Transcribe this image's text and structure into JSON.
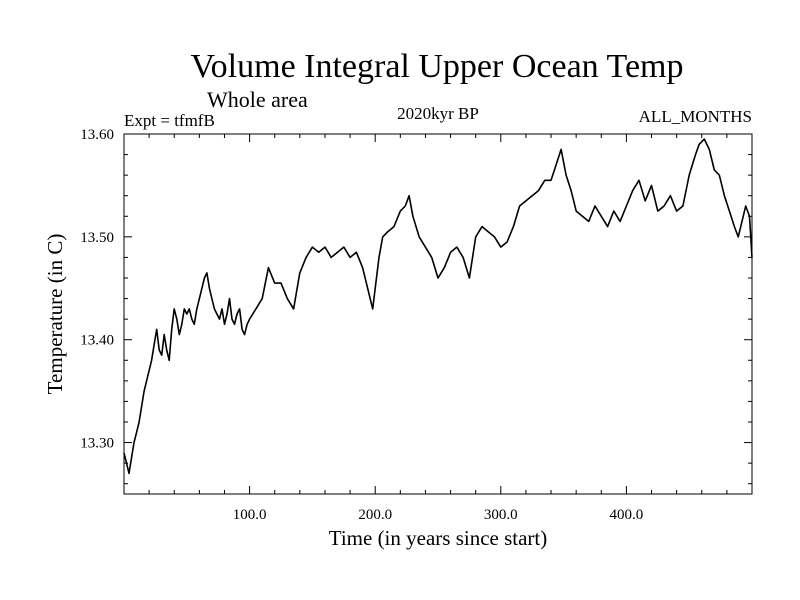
{
  "chart_data": {
    "type": "line",
    "title": "Volume Integral Upper Ocean Temp",
    "subtitle": "Whole area",
    "annotations": {
      "left": "Expt = tfmfB",
      "center": "2020kyr BP",
      "right": "ALL_MONTHS"
    },
    "xlabel": "Time (in years since start)",
    "ylabel": "Temperature (in C)",
    "xlim": [
      0,
      500
    ],
    "ylim": [
      13.25,
      13.6
    ],
    "xticks": [
      100,
      200,
      300,
      400
    ],
    "xtick_labels": [
      "100.0",
      "200.0",
      "300.0",
      "400.0"
    ],
    "yticks": [
      13.3,
      13.4,
      13.5,
      13.6
    ],
    "ytick_labels": [
      "13.30",
      "13.40",
      "13.50",
      "13.60"
    ],
    "grid": false,
    "series": [
      {
        "name": "Volume Integral Upper Ocean Temp",
        "color": "#000000",
        "x": [
          0,
          2,
          4,
          6,
          8,
          10,
          12,
          14,
          16,
          18,
          20,
          22,
          24,
          26,
          28,
          30,
          32,
          34,
          36,
          38,
          40,
          42,
          44,
          46,
          48,
          50,
          52,
          54,
          56,
          58,
          60,
          62,
          64,
          66,
          68,
          70,
          72,
          74,
          76,
          78,
          80,
          82,
          84,
          86,
          88,
          90,
          92,
          94,
          96,
          98,
          100,
          105,
          110,
          115,
          120,
          125,
          130,
          135,
          140,
          145,
          150,
          155,
          160,
          165,
          170,
          175,
          180,
          185,
          190,
          195,
          198,
          200,
          203,
          206,
          210,
          215,
          220,
          224,
          227,
          230,
          235,
          240,
          245,
          250,
          255,
          260,
          265,
          270,
          275,
          280,
          285,
          290,
          295,
          300,
          305,
          310,
          315,
          320,
          325,
          330,
          335,
          340,
          344,
          348,
          352,
          356,
          360,
          365,
          370,
          375,
          380,
          385,
          390,
          395,
          400,
          405,
          410,
          415,
          420,
          425,
          430,
          435,
          440,
          445,
          450,
          455,
          458,
          462,
          466,
          470,
          474,
          478,
          482,
          486,
          489,
          492,
          495,
          498,
          500
        ],
        "y": [
          13.29,
          13.28,
          13.27,
          13.285,
          13.3,
          13.31,
          13.32,
          13.335,
          13.35,
          13.36,
          13.37,
          13.38,
          13.395,
          13.41,
          13.39,
          13.385,
          13.405,
          13.39,
          13.38,
          13.41,
          13.43,
          13.42,
          13.405,
          13.415,
          13.43,
          13.425,
          13.43,
          13.42,
          13.415,
          13.43,
          13.44,
          13.45,
          13.46,
          13.465,
          13.45,
          13.44,
          13.43,
          13.425,
          13.42,
          13.43,
          13.415,
          13.425,
          13.44,
          13.42,
          13.415,
          13.425,
          13.43,
          13.41,
          13.405,
          13.415,
          13.42,
          13.43,
          13.44,
          13.47,
          13.455,
          13.455,
          13.44,
          13.43,
          13.465,
          13.48,
          13.49,
          13.485,
          13.49,
          13.48,
          13.485,
          13.49,
          13.48,
          13.485,
          13.47,
          13.445,
          13.43,
          13.45,
          13.48,
          13.5,
          13.505,
          13.51,
          13.525,
          13.53,
          13.54,
          13.52,
          13.5,
          13.49,
          13.48,
          13.46,
          13.47,
          13.485,
          13.49,
          13.48,
          13.46,
          13.5,
          13.51,
          13.505,
          13.5,
          13.49,
          13.495,
          13.51,
          13.53,
          13.535,
          13.54,
          13.545,
          13.555,
          13.555,
          13.57,
          13.585,
          13.56,
          13.545,
          13.525,
          13.52,
          13.515,
          13.53,
          13.52,
          13.51,
          13.525,
          13.515,
          13.53,
          13.545,
          13.555,
          13.535,
          13.55,
          13.525,
          13.53,
          13.54,
          13.525,
          13.53,
          13.56,
          13.58,
          13.59,
          13.595,
          13.585,
          13.565,
          13.56,
          13.54,
          13.525,
          13.51,
          13.5,
          13.515,
          13.53,
          13.52,
          13.48
        ]
      }
    ]
  }
}
